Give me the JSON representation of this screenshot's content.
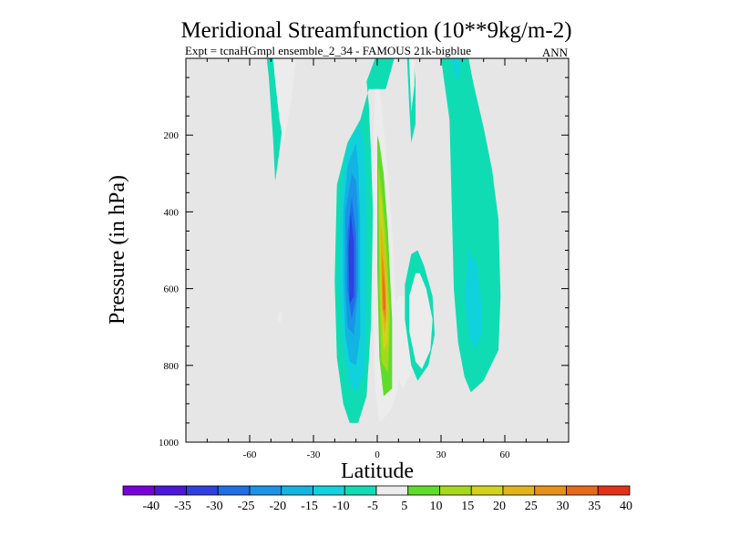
{
  "chart_data": {
    "type": "filled-contour",
    "title": "Meridional Streamfunction (10**9kg/m-2)",
    "subtitle": "Expt = tcnaHGmpl ensemble_2_34 - FAMOUS 21k-bigblue",
    "season": "ANN",
    "xlabel": "Latitude",
    "ylabel": "Pressure (in hPa)",
    "xlim": [
      -90,
      90
    ],
    "ylim": [
      1000,
      0
    ],
    "xticks": [
      -60,
      -30,
      0,
      30,
      60
    ],
    "yticks": [
      200,
      400,
      600,
      800,
      1000
    ],
    "background_color": "#e6e6e6",
    "colorbar": {
      "levels": [
        "-40",
        "-35",
        "-30",
        "-25",
        "-20",
        "-15",
        "-10",
        "-5",
        "5",
        "10",
        "15",
        "20",
        "25",
        "30",
        "35",
        "40"
      ],
      "colors": [
        "#7a00d9",
        "#4a18d8",
        "#2f3fe0",
        "#1f6ee6",
        "#1a94e6",
        "#12b4e2",
        "#10d2dc",
        "#10dcb4",
        "#ececec",
        "#5fdc2a",
        "#a6d81c",
        "#d2d21a",
        "#e2b418",
        "#e6901a",
        "#e66a1a",
        "#e03218"
      ]
    },
    "regions": [
      {
        "level": "-5",
        "points": [
          [
            -40,
            0
          ],
          [
            -52,
            0
          ],
          [
            -51,
            50
          ],
          [
            -49,
            210
          ],
          [
            -48,
            320
          ],
          [
            -46,
            240
          ],
          [
            -43,
            100
          ],
          [
            -41,
            20
          ]
        ]
      },
      {
        "level": "5",
        "points": [
          [
            -38,
            0
          ],
          [
            -49,
            0
          ],
          [
            -48,
            60
          ],
          [
            -46,
            160
          ],
          [
            -44,
            220
          ],
          [
            -41,
            130
          ],
          [
            -39,
            40
          ]
        ]
      },
      {
        "level": "-5",
        "points": [
          [
            -4,
            80
          ],
          [
            -8,
            160
          ],
          [
            -14,
            220
          ],
          [
            -19,
            330
          ],
          [
            -20,
            580
          ],
          [
            -19,
            780
          ],
          [
            -16,
            900
          ],
          [
            -13,
            950
          ],
          [
            -9,
            950
          ],
          [
            -5,
            880
          ],
          [
            -3,
            700
          ],
          [
            -2,
            400
          ],
          [
            -3,
            240
          ],
          [
            -4,
            120
          ],
          [
            -5,
            60
          ],
          [
            -1,
            0
          ],
          [
            8,
            0
          ],
          [
            4,
            80
          ]
        ]
      },
      {
        "level": "-10",
        "points": [
          [
            -8,
            170
          ],
          [
            -14,
            230
          ],
          [
            -17,
            350
          ],
          [
            -18,
            560
          ],
          [
            -16,
            750
          ],
          [
            -13,
            850
          ],
          [
            -10,
            870
          ],
          [
            -6,
            820
          ],
          [
            -5,
            650
          ],
          [
            -5,
            400
          ],
          [
            -6,
            250
          ]
        ]
      },
      {
        "level": "-15",
        "points": [
          [
            -10,
            220
          ],
          [
            -14,
            280
          ],
          [
            -16,
            400
          ],
          [
            -16,
            580
          ],
          [
            -15,
            720
          ],
          [
            -13,
            790
          ],
          [
            -10,
            800
          ],
          [
            -8,
            720
          ],
          [
            -8,
            420
          ],
          [
            -9,
            280
          ]
        ]
      },
      {
        "level": "-20",
        "points": [
          [
            -12,
            300
          ],
          [
            -15,
            400
          ],
          [
            -15,
            580
          ],
          [
            -14,
            700
          ],
          [
            -11,
            720
          ],
          [
            -9,
            600
          ],
          [
            -9,
            400
          ],
          [
            -10,
            320
          ]
        ]
      },
      {
        "level": "-25",
        "points": [
          [
            -12,
            360
          ],
          [
            -14,
            460
          ],
          [
            -14,
            600
          ],
          [
            -12,
            680
          ],
          [
            -10,
            620
          ],
          [
            -10,
            460
          ]
        ]
      },
      {
        "level": "-30",
        "points": [
          [
            -12.5,
            400
          ],
          [
            -13.5,
            500
          ],
          [
            -13,
            640
          ],
          [
            -11,
            620
          ],
          [
            -11,
            480
          ]
        ]
      },
      {
        "level": "5",
        "points": [
          [
            -1,
            80
          ],
          [
            -2,
            300
          ],
          [
            -2,
            600
          ],
          [
            -1,
            860
          ],
          [
            1,
            950
          ],
          [
            6,
            920
          ],
          [
            10,
            860
          ],
          [
            9,
            680
          ],
          [
            7,
            450
          ],
          [
            5,
            300
          ],
          [
            3,
            180
          ],
          [
            1,
            80
          ]
        ]
      },
      {
        "level": "10",
        "points": [
          [
            0,
            200
          ],
          [
            0,
            550
          ],
          [
            1,
            780
          ],
          [
            3,
            880
          ],
          [
            7,
            860
          ],
          [
            7,
            680
          ],
          [
            5,
            450
          ],
          [
            3,
            300
          ],
          [
            1,
            220
          ]
        ]
      },
      {
        "level": "15",
        "points": [
          [
            0.5,
            280
          ],
          [
            1,
            600
          ],
          [
            2,
            790
          ],
          [
            5,
            820
          ],
          [
            6,
            680
          ],
          [
            4,
            460
          ],
          [
            2,
            340
          ]
        ]
      },
      {
        "level": "20",
        "points": [
          [
            1,
            340
          ],
          [
            1.5,
            620
          ],
          [
            3,
            760
          ],
          [
            5,
            740
          ],
          [
            5,
            640
          ],
          [
            3,
            460
          ],
          [
            2,
            380
          ]
        ]
      },
      {
        "level": "25",
        "points": [
          [
            1.5,
            420
          ],
          [
            2,
            640
          ],
          [
            3.5,
            720
          ],
          [
            4.5,
            660
          ],
          [
            3.5,
            520
          ],
          [
            2.5,
            460
          ]
        ]
      },
      {
        "level": "30",
        "points": [
          [
            2,
            500
          ],
          [
            2.5,
            650
          ],
          [
            4,
            690
          ],
          [
            4,
            600
          ],
          [
            3,
            540
          ]
        ]
      },
      {
        "level": "35",
        "points": [
          [
            2.5,
            560
          ],
          [
            3,
            660
          ],
          [
            3.8,
            650
          ],
          [
            3.2,
            590
          ]
        ]
      },
      {
        "level": "5",
        "points": [
          [
            8,
            650
          ],
          [
            8,
            820
          ],
          [
            12,
            860
          ],
          [
            16,
            820
          ],
          [
            20,
            760
          ],
          [
            20,
            700
          ],
          [
            19,
            630
          ],
          [
            18,
            620
          ],
          [
            10,
            620
          ]
        ]
      },
      {
        "level": "-5",
        "points": [
          [
            16,
            510
          ],
          [
            13,
            590
          ],
          [
            13,
            680
          ],
          [
            16,
            800
          ],
          [
            19,
            840
          ],
          [
            24,
            800
          ],
          [
            27,
            720
          ],
          [
            26,
            620
          ],
          [
            22,
            540
          ],
          [
            19,
            500
          ]
        ]
      },
      {
        "level": "5",
        "points": [
          [
            18,
            560
          ],
          [
            15,
            620
          ],
          [
            15,
            710
          ],
          [
            18,
            790
          ],
          [
            21,
            810
          ],
          [
            25,
            760
          ],
          [
            26,
            680
          ],
          [
            23,
            600
          ],
          [
            20,
            560
          ]
        ]
      },
      {
        "level": "-5",
        "points": [
          [
            17,
            0
          ],
          [
            14,
            0
          ],
          [
            15,
            120
          ],
          [
            16,
            220
          ],
          [
            18,
            170
          ],
          [
            18,
            60
          ]
        ]
      },
      {
        "level": "5",
        "points": [
          [
            17.5,
            0
          ],
          [
            15,
            0
          ],
          [
            16,
            140
          ],
          [
            17.5,
            70
          ]
        ]
      },
      {
        "level": "-5",
        "points": [
          [
            43,
            0
          ],
          [
            30,
            0
          ],
          [
            34,
            160
          ],
          [
            35,
            380
          ],
          [
            36,
            600
          ],
          [
            38,
            740
          ],
          [
            41,
            830
          ],
          [
            44,
            870
          ],
          [
            50,
            840
          ],
          [
            57,
            760
          ],
          [
            58,
            620
          ],
          [
            57,
            420
          ],
          [
            54,
            290
          ],
          [
            50,
            180
          ],
          [
            45,
            60
          ]
        ]
      },
      {
        "level": "-10",
        "points": [
          [
            39,
            0
          ],
          [
            35,
            0
          ],
          [
            37,
            60
          ],
          [
            39,
            30
          ]
        ]
      },
      {
        "level": "-10",
        "points": [
          [
            43,
            500
          ],
          [
            41,
            620
          ],
          [
            43,
            720
          ],
          [
            46,
            760
          ],
          [
            49,
            720
          ],
          [
            49,
            640
          ],
          [
            47,
            540
          ]
        ]
      },
      {
        "level": "5",
        "points": [
          [
            -46,
            655
          ],
          [
            -47,
            680
          ],
          [
            -45.5,
            690
          ],
          [
            -45,
            665
          ]
        ]
      },
      {
        "level": "5",
        "points": [
          [
            16,
            650
          ],
          [
            15.5,
            675
          ],
          [
            17,
            685
          ],
          [
            17.5,
            660
          ]
        ]
      }
    ]
  }
}
